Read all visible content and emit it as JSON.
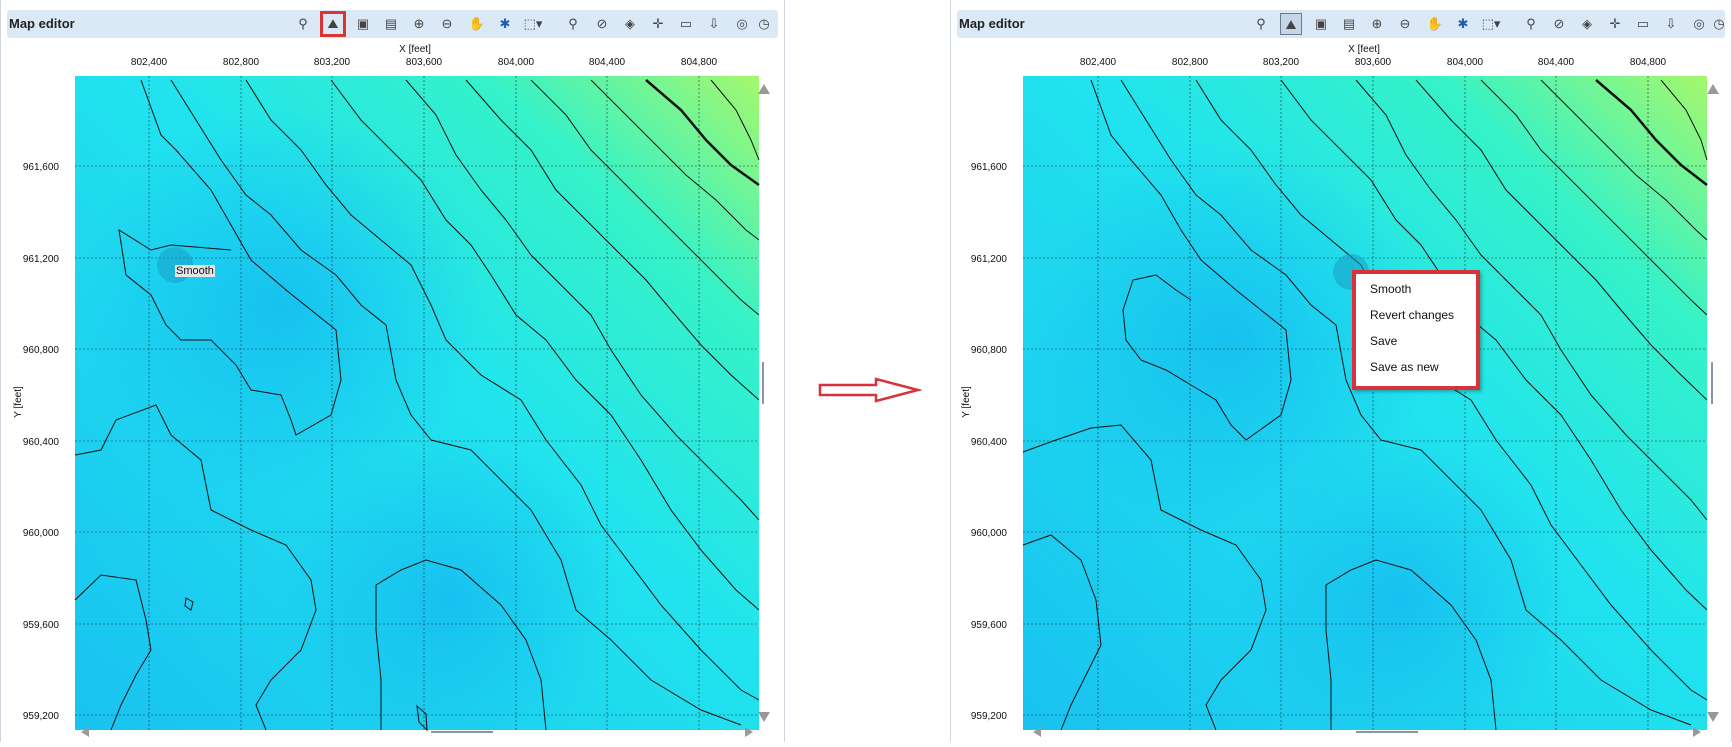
{
  "left_panel": {
    "title": "Map editor",
    "x_axis_label": "X [feet]",
    "y_axis_label": "Y [feet]",
    "x_ticks": [
      "802,400",
      "802,800",
      "803,200",
      "803,600",
      "804,000",
      "804,400",
      "804,800"
    ],
    "y_ticks": [
      "961,600",
      "961,200",
      "960,800",
      "960,400",
      "960,000",
      "959,600",
      "959,200"
    ],
    "tooltip": "Smooth"
  },
  "right_panel": {
    "title": "Map editor",
    "x_axis_label": "X [feet]",
    "y_axis_label": "Y [feet]",
    "x_ticks": [
      "802,400",
      "802,800",
      "803,200",
      "803,600",
      "804,000",
      "804,400",
      "804,800"
    ],
    "y_ticks": [
      "961,600",
      "961,200",
      "960,800",
      "960,400",
      "960,000",
      "959,600",
      "959,200"
    ]
  },
  "context_menu": {
    "items": [
      "Smooth",
      "Revert changes",
      "Save",
      "Save as new"
    ]
  },
  "toolbar_icons": [
    "wells-icon",
    "smooth-tool-icon",
    "contour-icon",
    "report-icon",
    "add-icon",
    "remove-icon",
    "pan-hand-icon",
    "settings-gear-icon",
    "select-icon",
    "zoom-icon",
    "pick-icon",
    "layers-icon",
    "crosshair-icon",
    "comment-icon",
    "export-icon",
    "screenshot-icon",
    "compass-icon"
  ],
  "colors": {
    "highlight": "#d8333a",
    "header": "#dbe9f7",
    "map_low": "#19bff2",
    "map_high": "#a5f86c"
  }
}
